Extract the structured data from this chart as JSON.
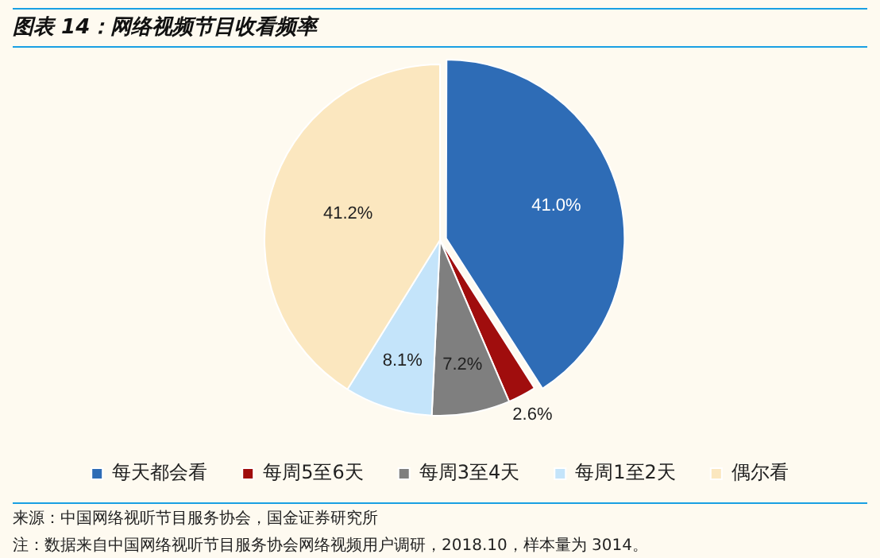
{
  "chart_data": {
    "type": "pie",
    "title": "图表 14：网络视频节目收看频率",
    "categories": [
      "每天都会看",
      "每周5至6天",
      "每周3至4天",
      "每周1至2天",
      "偶尔看"
    ],
    "values": [
      41.0,
      2.6,
      7.2,
      8.1,
      41.2
    ],
    "colors": [
      "#2e6cb6",
      "#a00d0d",
      "#7f7f7f",
      "#c4e4fa",
      "#fbe7bf"
    ],
    "value_labels": [
      "41.0%",
      "2.6%",
      "7.2%",
      "8.1%",
      "41.2%"
    ],
    "legend": "bottom",
    "annotations": [
      "来源：中国网络视听节目服务协会，国金证券研究所",
      "注：数据来自中国网络视听节目服务协会网络视频用户调研，2018.10，样本量为 3014。"
    ]
  }
}
